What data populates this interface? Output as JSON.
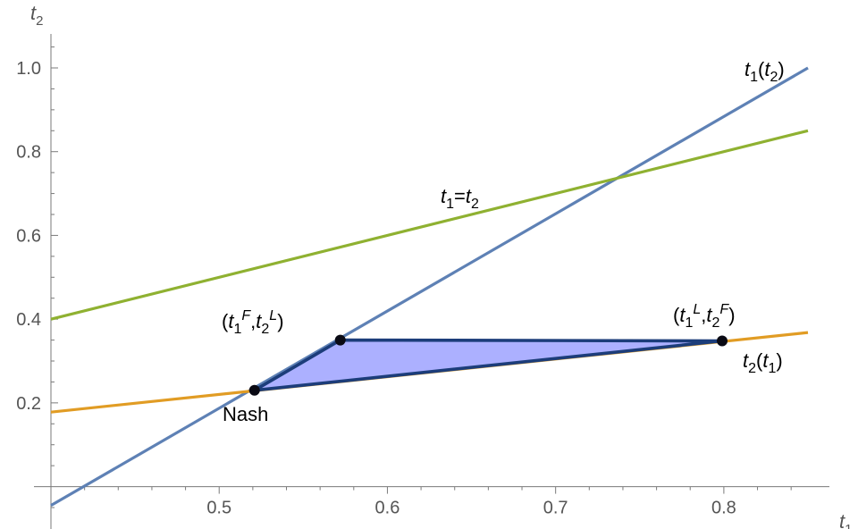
{
  "chart_data": {
    "type": "line",
    "title": "",
    "xlabel": {
      "base": "t",
      "sub": "1"
    },
    "ylabel": {
      "base": "t",
      "sub": "2"
    },
    "xlim": [
      0.4,
      0.85
    ],
    "ylim": [
      -0.05,
      1.05
    ],
    "x_axis_crosses_y": 0.0,
    "y_axis_at_x": 0.4,
    "x_ticks": [
      0.5,
      0.6,
      0.7,
      0.8
    ],
    "x_tick_labels": [
      "0.5",
      "0.6",
      "0.7",
      "0.8"
    ],
    "y_ticks": [
      0.2,
      0.4,
      0.6,
      0.8,
      1.0
    ],
    "y_tick_labels": [
      "0.2",
      "0.4",
      "0.6",
      "0.8",
      "1.0"
    ],
    "x_minor_step": 0.02,
    "y_minor_step": 0.05,
    "grid": false,
    "series": [
      {
        "name": "t1(t2)",
        "color": "#5e81b5",
        "x": [
          0.4,
          0.85
        ],
        "y": [
          -0.045,
          1.0
        ]
      },
      {
        "name": "t1=t2",
        "color": "#8fb131",
        "x": [
          0.4,
          0.85
        ],
        "y": [
          0.4,
          0.85
        ]
      },
      {
        "name": "t2(t1)",
        "color": "#e19c24",
        "x": [
          0.4,
          0.85
        ],
        "y": [
          0.178,
          0.368
        ]
      }
    ],
    "region": {
      "fill": "#a8acff",
      "stroke": "#1c3d7a",
      "vertices": [
        [
          0.521,
          0.23
        ],
        [
          0.572,
          0.35
        ],
        [
          0.799,
          0.348
        ]
      ]
    },
    "points": [
      {
        "id": "nash",
        "x": 0.521,
        "y": 0.23
      },
      {
        "id": "follower-leader",
        "x": 0.572,
        "y": 0.35
      },
      {
        "id": "leader-follower",
        "x": 0.799,
        "y": 0.348
      }
    ],
    "annotations": {
      "t1_of_t2": {
        "parts": [
          {
            "t": "t",
            "it": true
          },
          {
            "t": "1",
            "sub": true
          },
          {
            "t": "("
          },
          {
            "t": "t",
            "it": true
          },
          {
            "t": "2",
            "sub": true
          },
          {
            "t": ")"
          }
        ]
      },
      "t1_eq_t2": {
        "parts": [
          {
            "t": "t",
            "it": true
          },
          {
            "t": "1",
            "sub": true
          },
          {
            "t": "="
          },
          {
            "t": "t",
            "it": true
          },
          {
            "t": "2",
            "sub": true
          }
        ]
      },
      "t2_of_t1": {
        "parts": [
          {
            "t": "t",
            "it": true
          },
          {
            "t": "2",
            "sub": true
          },
          {
            "t": "("
          },
          {
            "t": "t",
            "it": true
          },
          {
            "t": "1",
            "sub": true
          },
          {
            "t": ")"
          }
        ]
      },
      "fl_point": {
        "parts": [
          {
            "t": "("
          },
          {
            "t": "t",
            "it": true
          },
          {
            "t": "1",
            "sub": true
          },
          {
            "t": "F",
            "sup": true,
            "it": true
          },
          {
            "t": ","
          },
          {
            "t": "t",
            "it": true
          },
          {
            "t": "2",
            "sub": true
          },
          {
            "t": "L",
            "sup": true,
            "it": true
          },
          {
            "t": ")"
          }
        ]
      },
      "lf_point": {
        "parts": [
          {
            "t": "("
          },
          {
            "t": "t",
            "it": true
          },
          {
            "t": "1",
            "sub": true
          },
          {
            "t": "L",
            "sup": true,
            "it": true
          },
          {
            "t": ","
          },
          {
            "t": "t",
            "it": true
          },
          {
            "t": "2",
            "sub": true
          },
          {
            "t": "F",
            "sup": true,
            "it": true
          },
          {
            "t": ")"
          }
        ]
      },
      "nash": {
        "parts": [
          {
            "t": "Nash"
          }
        ]
      }
    }
  }
}
